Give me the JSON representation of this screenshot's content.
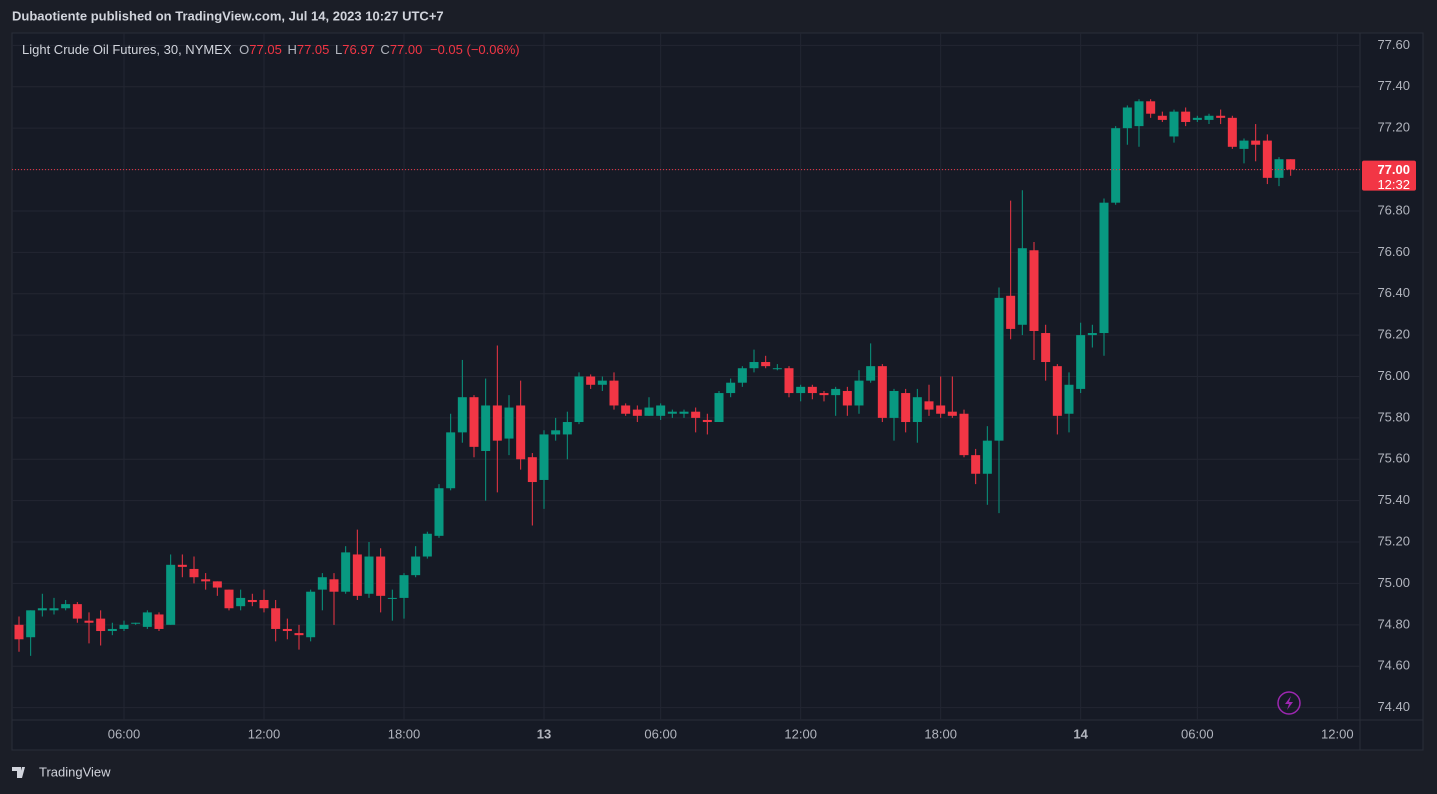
{
  "header": "Dubaotiente published on TradingView.com, Jul 14, 2023 10:27 UTC+7",
  "footer": "TradingView",
  "chart_data": {
    "type": "candlestick",
    "title": "Light Crude Oil Futures, 30, NYMEX",
    "legend_letters": [
      "O",
      "H",
      "L",
      "C"
    ],
    "legend_values": [
      "77.05",
      "77.05",
      "76.97",
      "77.00"
    ],
    "change_label": "−0.05 (−0.06%)",
    "last_price": {
      "value": 77.0,
      "label": "77.00"
    },
    "countdown": "12:32",
    "up_color": "#089981",
    "down_color": "#f23645",
    "grid": true,
    "ylim": [
      74.34,
      77.66
    ],
    "yticks": [
      {
        "value": 74.4,
        "label": "74.40"
      },
      {
        "value": 74.6,
        "label": "74.60"
      },
      {
        "value": 74.8,
        "label": "74.80"
      },
      {
        "value": 75.0,
        "label": "75.00"
      },
      {
        "value": 75.2,
        "label": "75.20"
      },
      {
        "value": 75.4,
        "label": "75.40"
      },
      {
        "value": 75.6,
        "label": "75.60"
      },
      {
        "value": 75.8,
        "label": "75.80"
      },
      {
        "value": 76.0,
        "label": "76.00"
      },
      {
        "value": 76.2,
        "label": "76.20"
      },
      {
        "value": 76.4,
        "label": "76.40"
      },
      {
        "value": 76.6,
        "label": "76.60"
      },
      {
        "value": 76.8,
        "label": "76.80"
      },
      {
        "value": 77.0,
        "label": "77.00"
      },
      {
        "value": 77.2,
        "label": "77.20"
      },
      {
        "value": 77.4,
        "label": "77.40"
      },
      {
        "value": 77.6,
        "label": "77.60"
      }
    ],
    "categories": [
      null,
      null,
      null,
      null,
      null,
      null,
      null,
      null,
      null,
      "06:00",
      null,
      null,
      null,
      null,
      null,
      null,
      null,
      null,
      null,
      null,
      null,
      "12:00",
      null,
      null,
      null,
      null,
      null,
      null,
      null,
      null,
      null,
      null,
      null,
      "18:00",
      null,
      null,
      null,
      null,
      null,
      null,
      null,
      null,
      null,
      null,
      null,
      "13",
      null,
      null,
      null,
      null,
      null,
      null,
      null,
      null,
      null,
      "06:00",
      null,
      null,
      null,
      null,
      null,
      null,
      null,
      null,
      null,
      null,
      null,
      "12:00",
      null,
      null,
      null,
      null,
      null,
      null,
      null,
      null,
      null,
      null,
      null,
      "18:00",
      null,
      null,
      null,
      null,
      null,
      null,
      null,
      null,
      null,
      null,
      null,
      "14",
      null,
      null,
      null,
      null,
      null,
      null,
      null,
      null,
      null,
      "06:00",
      null,
      null,
      null,
      null,
      null,
      null,
      null,
      null,
      null,
      null,
      null,
      "12:00"
    ],
    "open": [
      74.8,
      74.74,
      74.87,
      74.87,
      74.88,
      74.9,
      74.82,
      74.83,
      74.77,
      74.78,
      74.81,
      74.79,
      74.85,
      74.8,
      75.09,
      75.07,
      75.02,
      75.01,
      74.97,
      74.89,
      74.92,
      74.92,
      74.88,
      74.78,
      74.76,
      74.74,
      74.97,
      75.02,
      74.96,
      75.14,
      74.95,
      75.13,
      74.93,
      74.93,
      75.04,
      75.13,
      75.23,
      75.46,
      75.73,
      75.9,
      75.64,
      75.86,
      75.7,
      75.86,
      75.61,
      75.5,
      75.72,
      75.72,
      75.78,
      76.0,
      75.96,
      75.98,
      75.86,
      75.84,
      75.81,
      75.81,
      75.82,
      75.82,
      75.83,
      75.79,
      75.78,
      75.92,
      75.97,
      76.04,
      76.07,
      76.04,
      76.04,
      75.92,
      75.95,
      75.92,
      75.91,
      75.93,
      75.86,
      75.98,
      76.05,
      75.8,
      75.92,
      75.78,
      75.88,
      75.86,
      75.83,
      75.82,
      75.62,
      75.53,
      75.69,
      76.39,
      76.25,
      76.61,
      76.21,
      76.05,
      75.82,
      75.94,
      76.2,
      76.21,
      76.84,
      77.2,
      77.21,
      77.33,
      77.26,
      77.16,
      77.28,
      77.24,
      77.24,
      77.26,
      77.25,
      77.1,
      77.14,
      77.14,
      76.96,
      77.05,
      null,
      null,
      null,
      null
    ],
    "high": [
      74.84,
      74.87,
      74.95,
      74.93,
      74.92,
      74.91,
      74.86,
      74.87,
      74.81,
      74.82,
      74.81,
      74.87,
      74.86,
      75.14,
      75.14,
      75.13,
      75.05,
      75.01,
      74.97,
      74.97,
      74.95,
      74.97,
      74.92,
      74.83,
      74.8,
      74.97,
      75.05,
      75.05,
      75.18,
      75.26,
      75.2,
      75.17,
      74.97,
      75.05,
      75.18,
      75.25,
      75.48,
      75.82,
      76.08,
      75.91,
      75.99,
      76.15,
      75.91,
      75.98,
      75.63,
      75.74,
      75.8,
      75.83,
      76.02,
      76.01,
      76.0,
      76.02,
      75.87,
      75.86,
      75.9,
      75.87,
      75.84,
      75.84,
      75.85,
      75.82,
      75.93,
      75.99,
      76.05,
      76.13,
      76.1,
      76.06,
      76.05,
      75.96,
      75.96,
      75.93,
      75.95,
      75.95,
      76.03,
      76.16,
      76.06,
      75.94,
      75.94,
      75.94,
      75.96,
      76.0,
      76.0,
      75.84,
      75.65,
      75.76,
      76.43,
      76.85,
      76.9,
      76.65,
      76.25,
      76.06,
      76.02,
      76.26,
      76.25,
      76.86,
      77.21,
      77.31,
      77.34,
      77.34,
      77.28,
      77.29,
      77.3,
      77.26,
      77.27,
      77.29,
      77.26,
      77.15,
      77.22,
      77.17,
      77.06,
      77.05,
      null,
      null,
      null,
      null
    ],
    "low": [
      74.67,
      74.65,
      74.84,
      74.85,
      74.87,
      74.81,
      74.71,
      74.7,
      74.75,
      74.77,
      74.8,
      74.78,
      74.77,
      74.8,
      75.03,
      75.0,
      74.97,
      74.94,
      74.87,
      74.87,
      74.89,
      74.86,
      74.72,
      74.73,
      74.68,
      74.72,
      74.87,
      74.8,
      74.95,
      74.92,
      74.93,
      74.86,
      74.82,
      74.83,
      75.03,
      75.12,
      75.22,
      75.45,
      75.68,
      75.61,
      75.4,
      75.44,
      75.62,
      75.55,
      75.28,
      75.36,
      75.69,
      75.6,
      75.77,
      75.94,
      75.93,
      75.84,
      75.81,
      75.78,
      75.81,
      75.79,
      75.8,
      75.8,
      75.73,
      75.72,
      75.78,
      75.9,
      75.95,
      76.02,
      76.04,
      76.03,
      75.9,
      75.88,
      75.89,
      75.88,
      75.81,
      75.81,
      75.82,
      75.97,
      75.78,
      75.69,
      75.73,
      75.68,
      75.81,
      75.8,
      75.8,
      75.61,
      75.48,
      75.38,
      75.34,
      76.18,
      76.2,
      76.08,
      75.98,
      75.72,
      75.73,
      75.92,
      76.14,
      76.1,
      76.83,
      77.12,
      77.11,
      77.25,
      77.23,
      77.13,
      77.21,
      77.23,
      77.22,
      77.22,
      77.1,
      77.03,
      77.04,
      76.93,
      76.92,
      76.97,
      null,
      null,
      null,
      null
    ],
    "close": [
      74.73,
      74.87,
      74.88,
      74.88,
      74.9,
      74.83,
      74.81,
      74.77,
      74.78,
      74.8,
      74.81,
      74.86,
      74.78,
      75.09,
      75.08,
      75.03,
      75.01,
      74.98,
      74.88,
      74.93,
      74.91,
      74.88,
      74.78,
      74.77,
      74.75,
      74.96,
      75.03,
      74.96,
      75.15,
      74.94,
      75.13,
      74.94,
      74.93,
      75.04,
      75.13,
      75.24,
      75.46,
      75.73,
      75.9,
      75.66,
      75.86,
      75.69,
      75.85,
      75.6,
      75.49,
      75.72,
      75.74,
      75.78,
      76.0,
      75.96,
      75.98,
      75.86,
      75.82,
      75.81,
      75.85,
      75.86,
      75.83,
      75.83,
      75.8,
      75.78,
      75.92,
      75.97,
      76.04,
      76.07,
      76.05,
      76.04,
      75.92,
      75.95,
      75.92,
      75.91,
      75.94,
      75.86,
      75.98,
      76.05,
      75.8,
      75.93,
      75.78,
      75.9,
      75.84,
      75.82,
      75.81,
      75.62,
      75.53,
      75.69,
      76.38,
      76.23,
      76.62,
      76.22,
      76.07,
      75.81,
      75.96,
      76.2,
      76.21,
      76.84,
      77.2,
      77.3,
      77.33,
      77.27,
      77.24,
      77.28,
      77.23,
      77.25,
      77.26,
      77.25,
      77.11,
      77.14,
      77.12,
      76.96,
      77.05,
      77.0,
      null,
      null,
      null,
      null
    ]
  }
}
